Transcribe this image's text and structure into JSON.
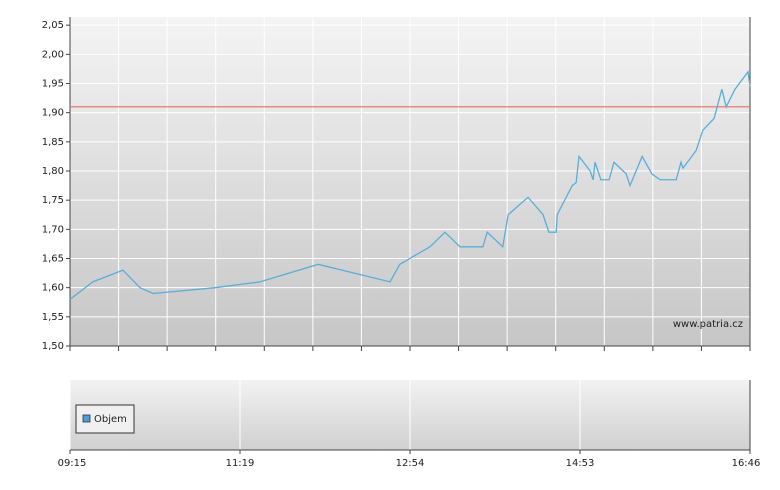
{
  "chart_data": {
    "type": "line",
    "x": [
      0,
      0.47,
      1.09,
      1.44,
      1.71,
      2.99,
      3.91,
      5.11,
      6.59,
      6.79,
      7.41,
      7.72,
      8.03,
      8.5,
      8.59,
      8.91,
      9.02,
      9.43,
      9.74,
      9.86,
      10.01,
      10.03,
      10.34,
      10.42,
      10.48,
      10.71,
      10.77,
      10.81,
      10.93,
      11.1,
      11.2,
      11.45,
      11.53,
      11.78,
      11.98,
      12.15,
      12.48,
      12.58,
      12.62,
      12.89,
      13.03,
      13.26,
      13.42,
      13.51,
      13.69,
      13.96,
      14
    ],
    "series": [
      {
        "color": "#5aaed8",
        "values": [
          1.58,
          1.61,
          1.63,
          1.6,
          1.59,
          1.6,
          1.61,
          1.64,
          1.61,
          1.64,
          1.67,
          1.695,
          1.67,
          1.67,
          1.695,
          1.67,
          1.725,
          1.755,
          1.725,
          1.695,
          1.695,
          1.725,
          1.775,
          1.78,
          1.825,
          1.8,
          1.785,
          1.815,
          1.785,
          1.785,
          1.815,
          1.795,
          1.775,
          1.825,
          1.795,
          1.785,
          1.785,
          1.815,
          1.805,
          1.835,
          1.87,
          1.89,
          1.94,
          1.91,
          1.94,
          1.97,
          1.945
        ]
      }
    ],
    "xlim": [
      0,
      14
    ],
    "xticks": [
      {
        "value": 0,
        "label": "09:15"
      },
      {
        "value": 3.5,
        "label": "11:19"
      },
      {
        "value": 7,
        "label": "12:54"
      },
      {
        "value": 10.5,
        "label": "14:53"
      },
      {
        "value": 14,
        "label": "16:46"
      }
    ],
    "ylim": [
      1.5,
      2.064
    ],
    "yticks": [
      {
        "value": 1.5,
        "label": "1,50"
      },
      {
        "value": 1.55,
        "label": "1,55"
      },
      {
        "value": 1.6,
        "label": "1,60"
      },
      {
        "value": 1.65,
        "label": "1,65"
      },
      {
        "value": 1.7,
        "label": "1,70"
      },
      {
        "value": 1.75,
        "label": "1,75"
      },
      {
        "value": 1.8,
        "label": "1,80"
      },
      {
        "value": 1.85,
        "label": "1,85"
      },
      {
        "value": 1.9,
        "label": "1,90"
      },
      {
        "value": 1.95,
        "label": "1,95"
      },
      {
        "value": 2.0,
        "label": "2,00"
      },
      {
        "value": 2.05,
        "label": "2,05"
      }
    ],
    "grid": true,
    "reference_line": {
      "value": 1.91,
      "color": "#e07060"
    },
    "watermark": "www.patria.cz",
    "volume_legend": {
      "name": "Objem",
      "color": "#4a9fd4"
    }
  }
}
